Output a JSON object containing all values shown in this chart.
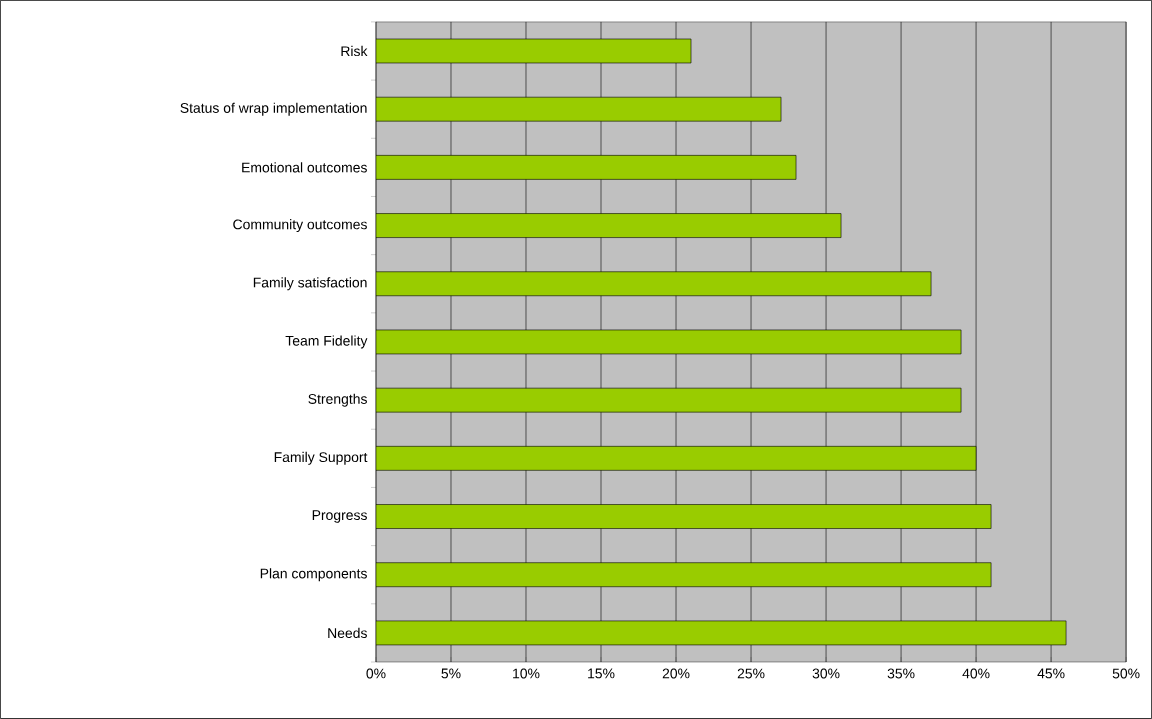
{
  "chart_data": {
    "type": "bar",
    "orientation": "horizontal",
    "categories": [
      "Risk",
      "Status of wrap implementation",
      "Emotional outcomes",
      "Community outcomes",
      "Family satisfaction",
      "Team Fidelity",
      "Strengths",
      "Family Support",
      "Progress",
      "Plan components",
      "Needs"
    ],
    "values": [
      21,
      27,
      28,
      31,
      37,
      39,
      39,
      40,
      41,
      41,
      46
    ],
    "color": "#99cc00",
    "xlim": [
      0,
      50
    ],
    "xticks": [
      {
        "value": 0,
        "label": "0%"
      },
      {
        "value": 5,
        "label": "5%"
      },
      {
        "value": 10,
        "label": "10%"
      },
      {
        "value": 15,
        "label": "15%"
      },
      {
        "value": 20,
        "label": "20%"
      },
      {
        "value": 25,
        "label": "25%"
      },
      {
        "value": 30,
        "label": "30%"
      },
      {
        "value": 35,
        "label": "35%"
      },
      {
        "value": 40,
        "label": "40%"
      },
      {
        "value": 45,
        "label": "45%"
      },
      {
        "value": 50,
        "label": "50%"
      }
    ],
    "grid": "x"
  }
}
